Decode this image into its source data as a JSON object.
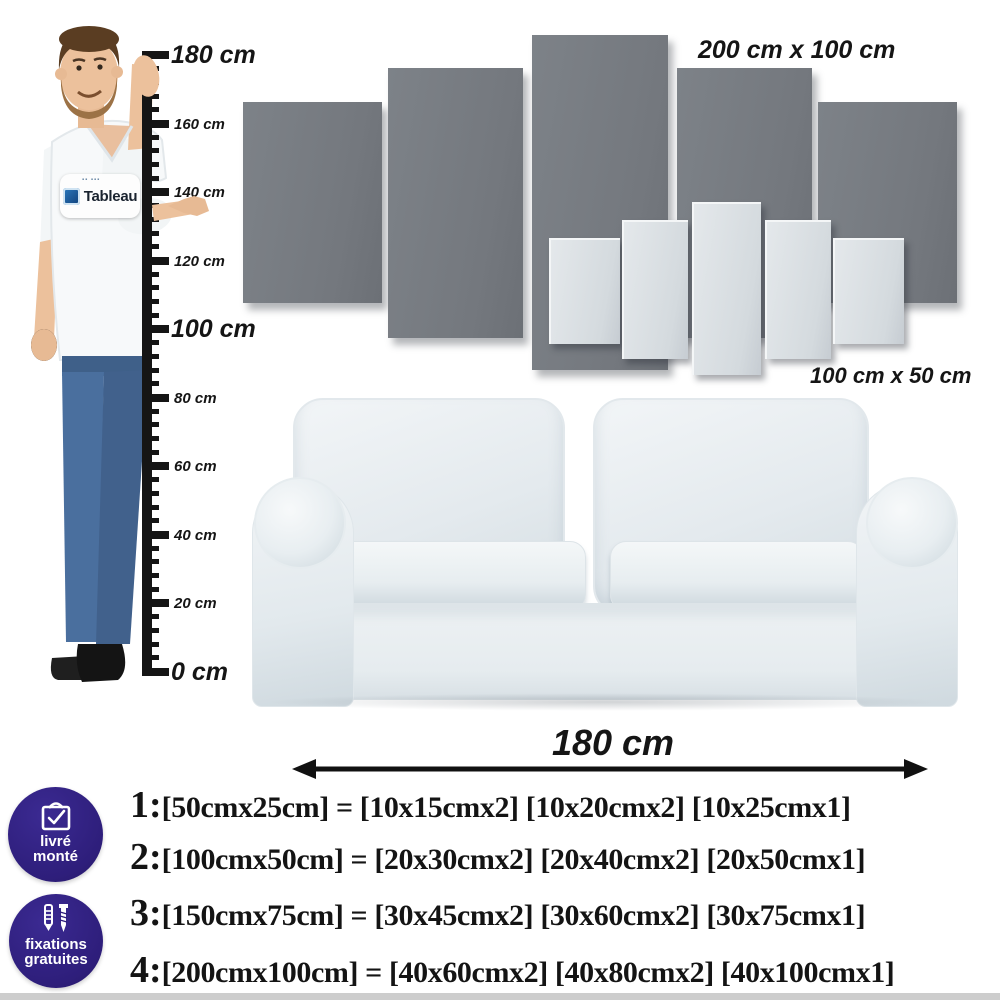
{
  "ruler": {
    "labels": [
      {
        "text": "180 cm",
        "large": true
      },
      {
        "text": "160 cm",
        "large": false
      },
      {
        "text": "140 cm",
        "large": false
      },
      {
        "text": "120 cm",
        "large": false
      },
      {
        "text": "100 cm",
        "large": true
      },
      {
        "text": "80 cm",
        "large": false
      },
      {
        "text": "60 cm",
        "large": false
      },
      {
        "text": "40 cm",
        "large": false
      },
      {
        "text": "20 cm",
        "large": false
      },
      {
        "text": "0 cm",
        "large": true
      }
    ]
  },
  "panels": {
    "large_size_label": "200 cm x 100 cm",
    "small_size_label": "100 cm x 50 cm"
  },
  "sofa": {
    "width_label": "180 cm"
  },
  "logo": {
    "brand": "Tableau"
  },
  "badges": [
    {
      "line1": "livré",
      "line2": "monté"
    },
    {
      "line1": "fixations",
      "line2": "gratuites"
    }
  ],
  "size_options": [
    {
      "num": "1:",
      "text": "[50cmx25cm] = [10x15cmx2] [10x20cmx2] [10x25cmx1]"
    },
    {
      "num": "2:",
      "text": "[100cmx50cm] = [20x30cmx2] [20x40cmx2] [20x50cmx1]"
    },
    {
      "num": "3:",
      "text": "[150cmx75cm] = [30x45cmx2] [30x60cmx2] [30x75cmx1]"
    },
    {
      "num": "4:",
      "text": "[200cmx100cm] = [40x60cmx2] [40x80cmx2] [40x100cmx1]"
    }
  ],
  "colors": {
    "badge_purple": "#2e1e7b",
    "panel_dark": "#757a80",
    "panel_light": "#d9dee2",
    "jeans_blue": "#4a6f9e",
    "text_dark": "#141414"
  }
}
